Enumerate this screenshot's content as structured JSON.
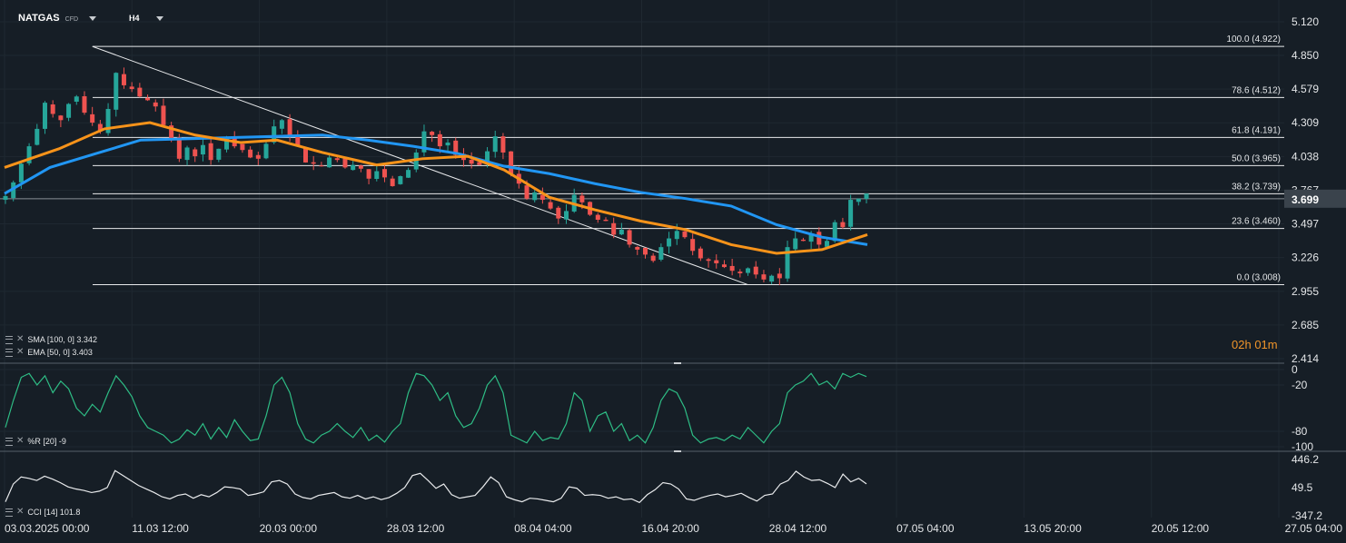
{
  "header": {
    "symbol": "NATGAS",
    "symbol_type": "CFD",
    "timeframe": "H4"
  },
  "legend": {
    "sma": "SMA [100, 0] 3.342",
    "ema": "EMA [50, 0] 3.403",
    "wpr": "%R [20] -9",
    "cci": "CCI [14] 101.8"
  },
  "timer": {
    "hours": "02",
    "h_unit": "h",
    "minutes": "01",
    "m_unit": "m"
  },
  "colors": {
    "up": "#26a69a",
    "down": "#ef5350",
    "sma": "#2196f3",
    "ema": "#f7931a",
    "bg": "#161e26"
  },
  "chart_data": [
    {
      "type": "candlestick",
      "x_ticks": [
        "03.03.2025 00:00",
        "11.03 12:00",
        "20.03 00:00",
        "28.03 12:00",
        "08.04 04:00",
        "16.04 20:00",
        "28.04 12:00",
        "07.05 04:00",
        "13.05 20:00",
        "20.05 12:00",
        "27.05 04:00"
      ],
      "y_ticks": [
        "5.120",
        "4.850",
        "4.579",
        "4.309",
        "4.038",
        "3.767",
        "3.497",
        "3.226",
        "2.955",
        "2.685",
        "2.414"
      ],
      "ylim": [
        2.414,
        5.2
      ],
      "last_price": "3.699",
      "fibonacci": [
        {
          "level": "100.0",
          "price": 4.922,
          "label": "100.0 (4.922)"
        },
        {
          "level": "78.6",
          "price": 4.512,
          "label": "78.6 (4.512)"
        },
        {
          "level": "61.8",
          "price": 4.191,
          "label": "61.8 (4.191)"
        },
        {
          "level": "50.0",
          "price": 3.965,
          "label": "50.0 (3.965)"
        },
        {
          "level": "38.2",
          "price": 3.739,
          "label": "38.2 (3.739)"
        },
        {
          "level": "23.6",
          "price": 3.46,
          "label": "23.6 (3.460)"
        },
        {
          "level": "0.0",
          "price": 3.008,
          "label": "0.0 (3.008)"
        }
      ],
      "sma_last": 3.342,
      "ema_last": 3.403,
      "series": [
        {
          "name": "SMA [100, 0]",
          "points": [
            [
              0,
              3.74
            ],
            [
              50,
              3.95
            ],
            [
              100,
              4.06
            ],
            [
              150,
              4.17
            ],
            [
              200,
              4.18
            ],
            [
              250,
              4.19
            ],
            [
              300,
              4.2
            ],
            [
              350,
              4.21
            ],
            [
              400,
              4.17
            ],
            [
              450,
              4.12
            ],
            [
              500,
              4.06
            ],
            [
              550,
              3.96
            ],
            [
              600,
              3.9
            ],
            [
              650,
              3.82
            ],
            [
              700,
              3.75
            ],
            [
              750,
              3.7
            ],
            [
              800,
              3.64
            ],
            [
              850,
              3.49
            ],
            [
              900,
              3.39
            ],
            [
              950,
              3.33
            ]
          ]
        },
        {
          "name": "EMA [50, 0]",
          "points": [
            [
              0,
              3.95
            ],
            [
              60,
              4.1
            ],
            [
              110,
              4.26
            ],
            [
              160,
              4.31
            ],
            [
              210,
              4.21
            ],
            [
              260,
              4.15
            ],
            [
              300,
              4.17
            ],
            [
              350,
              4.07
            ],
            [
              410,
              3.97
            ],
            [
              460,
              4.02
            ],
            [
              510,
              4.04
            ],
            [
              550,
              3.93
            ],
            [
              600,
              3.71
            ],
            [
              650,
              3.61
            ],
            [
              700,
              3.52
            ],
            [
              750,
              3.45
            ],
            [
              800,
              3.33
            ],
            [
              850,
              3.26
            ],
            [
              900,
              3.29
            ],
            [
              950,
              3.41
            ]
          ]
        }
      ],
      "candles_close": [
        3.72,
        3.83,
        3.98,
        4.12,
        4.26,
        4.47,
        4.38,
        4.33,
        4.46,
        4.52,
        4.39,
        4.31,
        4.24,
        4.42,
        4.71,
        4.61,
        4.58,
        4.52,
        4.49,
        4.44,
        4.29,
        4.18,
        4.02,
        4.11,
        4.04,
        4.13,
        4.01,
        4.1,
        4.19,
        4.12,
        4.09,
        4.03,
        4.02,
        4.14,
        4.28,
        4.33,
        4.21,
        4.13,
        3.99,
        3.98,
        3.96,
        4.03,
        4.01,
        3.95,
        3.97,
        3.94,
        3.86,
        3.92,
        3.87,
        3.8,
        3.88,
        3.93,
        4.07,
        4.24,
        4.21,
        4.12,
        4.15,
        4.05,
        4.01,
        3.98,
        3.97,
        4.08,
        4.2,
        4.07,
        3.9,
        3.82,
        3.7,
        3.75,
        3.69,
        3.62,
        3.54,
        3.6,
        3.73,
        3.67,
        3.57,
        3.53,
        3.52,
        3.41,
        3.45,
        3.33,
        3.29,
        3.25,
        3.2,
        3.31,
        3.38,
        3.44,
        3.39,
        3.28,
        3.22,
        3.2,
        3.18,
        3.15,
        3.12,
        3.1,
        3.14,
        3.09,
        3.05,
        3.08,
        3.06,
        3.31,
        3.38,
        3.36,
        3.42,
        3.33,
        3.36,
        3.51,
        3.47,
        3.69,
        3.7,
        3.74
      ]
    },
    {
      "type": "line",
      "name": "%R [20]",
      "y_ticks": [
        "0",
        "-20",
        "-80",
        "-100"
      ],
      "ylim": [
        -100,
        0
      ],
      "last": -9,
      "values": [
        -75,
        -40,
        -10,
        -5,
        -20,
        -8,
        -30,
        -15,
        -25,
        -50,
        -60,
        -45,
        -55,
        -30,
        -8,
        -20,
        -35,
        -60,
        -75,
        -80,
        -85,
        -95,
        -90,
        -78,
        -85,
        -70,
        -90,
        -75,
        -88,
        -65,
        -80,
        -92,
        -90,
        -60,
        -20,
        -10,
        -30,
        -70,
        -90,
        -95,
        -85,
        -80,
        -70,
        -80,
        -88,
        -75,
        -92,
        -85,
        -94,
        -80,
        -70,
        -30,
        -5,
        -8,
        -20,
        -40,
        -30,
        -60,
        -75,
        -70,
        -50,
        -20,
        -8,
        -30,
        -85,
        -90,
        -95,
        -80,
        -92,
        -88,
        -90,
        -70,
        -30,
        -40,
        -80,
        -60,
        -55,
        -80,
        -70,
        -92,
        -85,
        -95,
        -75,
        -40,
        -25,
        -30,
        -50,
        -85,
        -95,
        -90,
        -88,
        -92,
        -85,
        -90,
        -75,
        -85,
        -95,
        -80,
        -70,
        -30,
        -20,
        -15,
        -5,
        -20,
        -15,
        -25,
        -5,
        -10,
        -5,
        -9
      ]
    },
    {
      "type": "line",
      "name": "CCI [14]",
      "y_ticks": [
        "446.2",
        "49.5",
        "-347.2"
      ],
      "ylim": [
        -347.2,
        446.2
      ],
      "last": 101.8,
      "values": [
        -150,
        100,
        200,
        180,
        150,
        210,
        170,
        120,
        60,
        30,
        10,
        -20,
        0,
        50,
        290,
        220,
        150,
        80,
        30,
        -20,
        -80,
        -110,
        -60,
        -40,
        -100,
        -50,
        -80,
        -20,
        60,
        50,
        30,
        -60,
        -40,
        -10,
        130,
        150,
        100,
        -40,
        -90,
        -110,
        -60,
        -40,
        -20,
        -80,
        -100,
        -60,
        -110,
        -80,
        -120,
        -90,
        -30,
        50,
        220,
        250,
        150,
        40,
        100,
        -50,
        -100,
        -80,
        -60,
        60,
        200,
        120,
        -80,
        -120,
        -150,
        -100,
        -110,
        -130,
        -150,
        -100,
        60,
        40,
        -60,
        -50,
        -60,
        -100,
        -80,
        -120,
        -110,
        -160,
        -50,
        20,
        120,
        100,
        30,
        -110,
        -130,
        -90,
        -60,
        -40,
        -80,
        -60,
        -30,
        -90,
        -140,
        -60,
        -40,
        100,
        150,
        280,
        200,
        150,
        160,
        110,
        50,
        240,
        130,
        180,
        102
      ]
    }
  ]
}
